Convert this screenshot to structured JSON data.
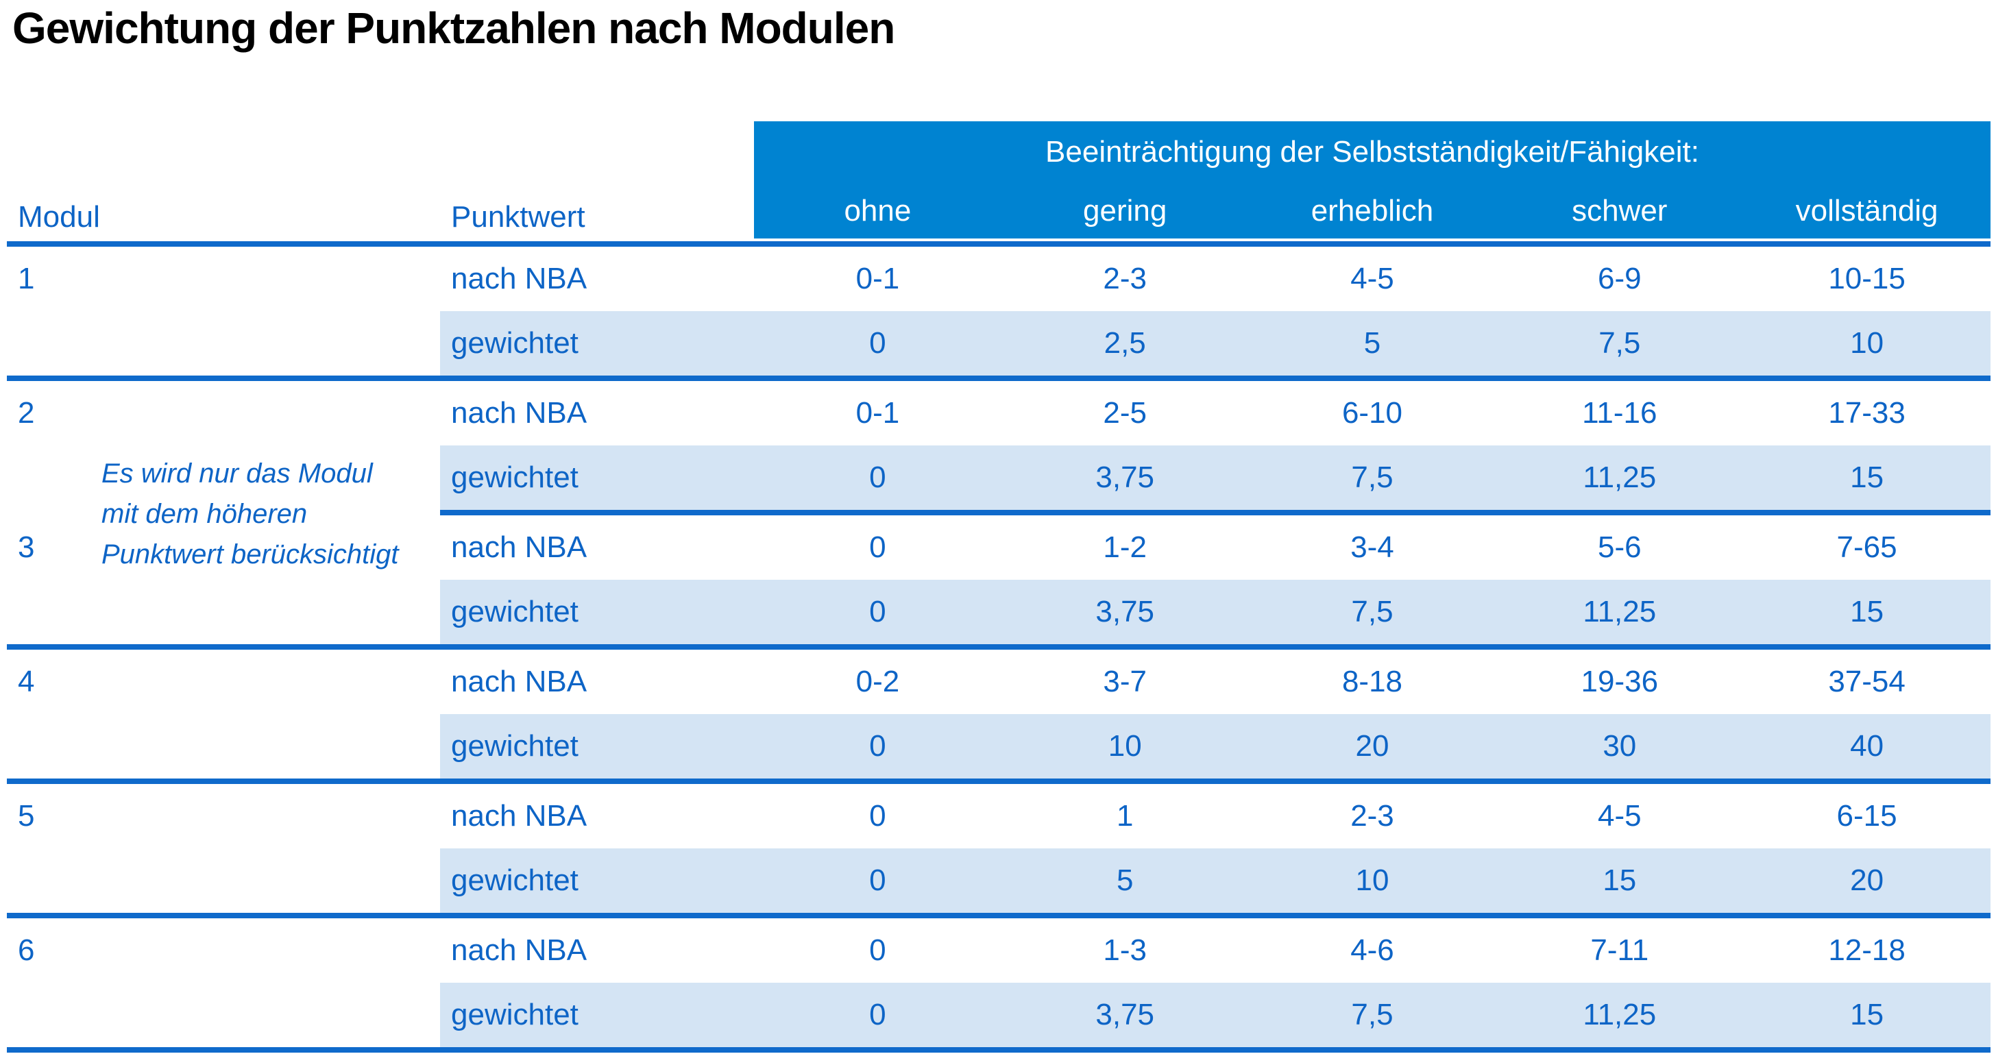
{
  "title": "Gewichtung der Punktzahlen nach Modulen",
  "colors": {
    "header_band": "#0083d1",
    "rule_line": "#0f6acb",
    "text_blue": "#0d64c6",
    "shaded_row": "#d4e4f4",
    "header_text": "#ffffff",
    "title_text": "#000000"
  },
  "table": {
    "modul_header": "Modul",
    "punktwert_header": "Punktwert",
    "group_header": "Beeinträchtigung der Selbstständigkeit/Fähigkeit:",
    "levels": [
      "ohne",
      "gering",
      "erheblich",
      "schwer",
      "vollständig"
    ],
    "row_labels": {
      "nba": "nach NBA",
      "weighted": "gewichtet"
    },
    "note_lines": [
      "Es wird nur das Modul",
      "mit dem höheren",
      "Punktwert berücksichtigt"
    ],
    "modules": [
      {
        "id": "1",
        "nba": [
          "0-1",
          "2-3",
          "4-5",
          "6-9",
          "10-15"
        ],
        "weighted": [
          "0",
          "2,5",
          "5",
          "7,5",
          "10"
        ]
      },
      {
        "id": "2",
        "nba": [
          "0-1",
          "2-5",
          "6-10",
          "11-16",
          "17-33"
        ],
        "weighted": [
          "0",
          "3,75",
          "7,5",
          "11,25",
          "15"
        ]
      },
      {
        "id": "3",
        "nba": [
          "0",
          "1-2",
          "3-4",
          "5-6",
          "7-65"
        ],
        "weighted": [
          "0",
          "3,75",
          "7,5",
          "11,25",
          "15"
        ]
      },
      {
        "id": "4",
        "nba": [
          "0-2",
          "3-7",
          "8-18",
          "19-36",
          "37-54"
        ],
        "weighted": [
          "0",
          "10",
          "20",
          "30",
          "40"
        ]
      },
      {
        "id": "5",
        "nba": [
          "0",
          "1",
          "2-3",
          "4-5",
          "6-15"
        ],
        "weighted": [
          "0",
          "5",
          "10",
          "15",
          "20"
        ]
      },
      {
        "id": "6",
        "nba": [
          "0",
          "1-3",
          "4-6",
          "7-11",
          "12-18"
        ],
        "weighted": [
          "0",
          "3,75",
          "7,5",
          "11,25",
          "15"
        ]
      }
    ]
  }
}
